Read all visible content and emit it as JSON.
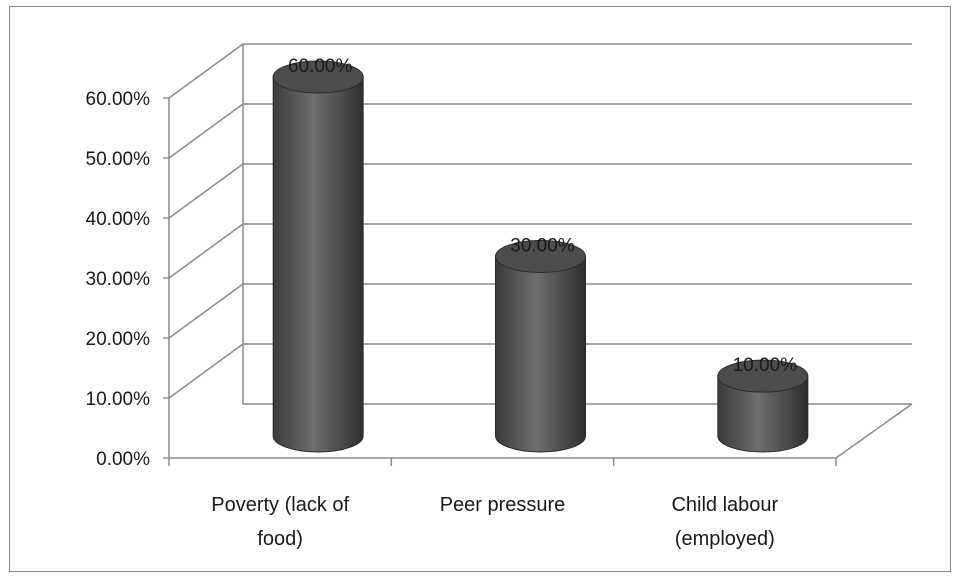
{
  "chart_data": {
    "type": "bar",
    "style": "3d-cylinder",
    "categories": [
      "Poverty (lack of food)",
      "Peer pressure",
      "Child labour (employed)"
    ],
    "category_lines": [
      [
        "Poverty (lack of",
        "food)"
      ],
      [
        "Peer pressure"
      ],
      [
        "Child labour",
        "(employed)"
      ]
    ],
    "values": [
      60,
      30,
      10
    ],
    "data_labels": [
      "60.00%",
      "30.00%",
      "10.00%"
    ],
    "y_ticks": [
      "0.00%",
      "10.00%",
      "20.00%",
      "30.00%",
      "40.00%",
      "50.00%",
      "60.00%"
    ],
    "ylim": [
      0,
      60
    ],
    "grid": true,
    "legend": "none",
    "bar_color": "#4a4a4a"
  }
}
